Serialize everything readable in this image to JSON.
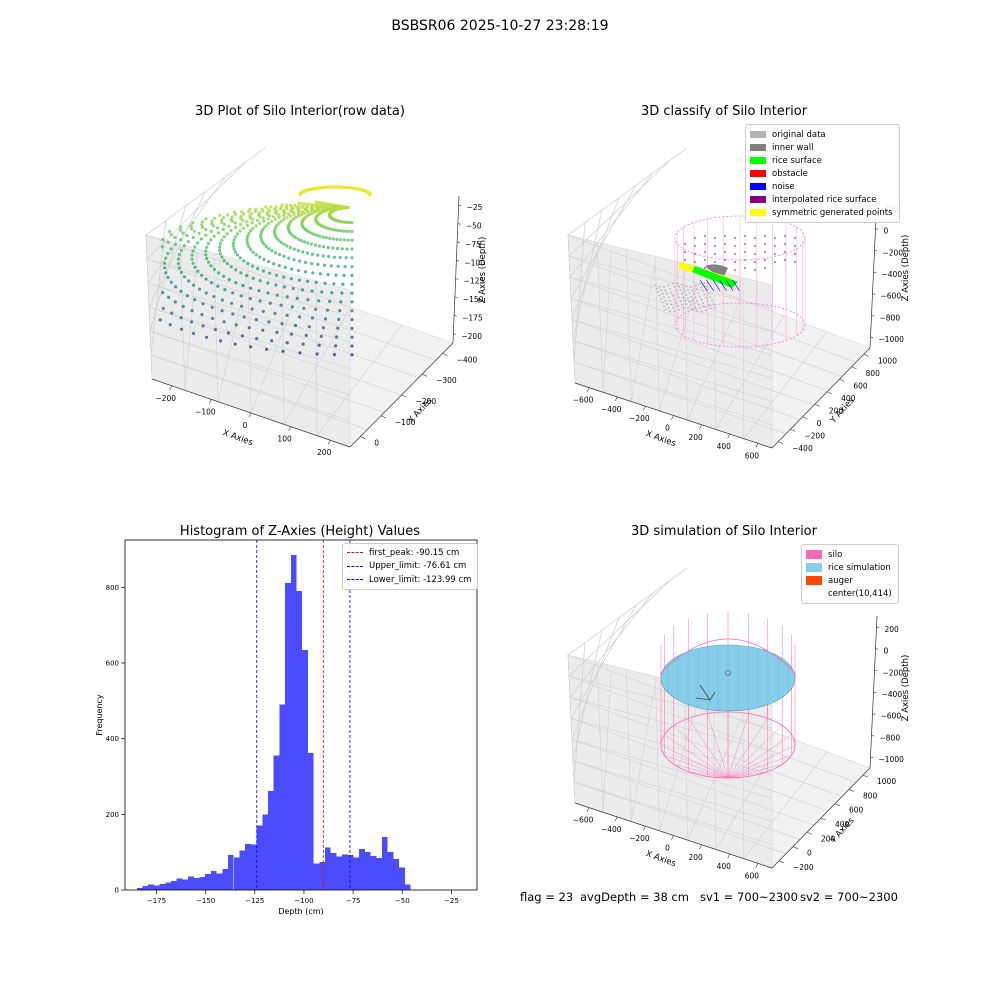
{
  "figure": {
    "suptitle": "BSBSR06 2025-10-27 23:28:19"
  },
  "colors": {
    "histogram_bar": "#4c4cff",
    "first_peak_line": "#ff0000",
    "limit_line": "#0000ff",
    "silo": "#ff69b4",
    "rice_simulation": "#87ceeb",
    "auger": "#ff4500"
  },
  "chart_data": [
    {
      "type": "scatter",
      "projection": "3d",
      "title": "3D Plot of Silo Interior(row data)",
      "xlabel": "X Axies",
      "ylabel": "Y Axies",
      "zlabel": "Z Axies (Depth)",
      "x_ticks": [
        "−200",
        "−100",
        "0",
        "100",
        "200"
      ],
      "y_ticks": [
        "−400",
        "−300",
        "−200",
        "−100",
        "0"
      ],
      "z_ticks": [
        "−25",
        "−50",
        "−75",
        "−100",
        "−125",
        "−150",
        "−175",
        "−200"
      ],
      "colormap": "viridis",
      "grid": true
    },
    {
      "type": "scatter",
      "projection": "3d",
      "title": "3D classify of Silo Interior",
      "xlabel": "X Axies",
      "ylabel": "Y Axies",
      "zlabel": "Z Axies (Depth)",
      "x_ticks": [
        "−600",
        "−400",
        "−200",
        "0",
        "200",
        "400",
        "600"
      ],
      "y_ticks": [
        "−400",
        "−200",
        "0",
        "200",
        "400",
        "600",
        "800",
        "1000"
      ],
      "z_ticks": [
        "200",
        "0",
        "−200",
        "−400",
        "−600",
        "−800",
        "−1000"
      ],
      "legend_position": "top-right",
      "legend": [
        {
          "label": "original data",
          "color": "#b3b3b3"
        },
        {
          "label": "inner wall",
          "color": "#808080"
        },
        {
          "label": "rice surface",
          "color": "#00ff00"
        },
        {
          "label": "obstacle",
          "color": "#ff0000"
        },
        {
          "label": "noise",
          "color": "#0000ff"
        },
        {
          "label": "interpolated rice surface",
          "color": "#800080"
        },
        {
          "label": "symmetric generated points",
          "color": "#ffff00"
        }
      ],
      "grid": true
    },
    {
      "type": "bar",
      "title": "Histogram of Z-Axies (Height) Values",
      "xlabel": "Depth (cm)",
      "ylabel": "Frequency",
      "bin_start": -185,
      "bin_width": 2.9,
      "values": [
        5,
        10,
        14,
        12,
        16,
        20,
        24,
        30,
        28,
        36,
        32,
        34,
        42,
        50,
        44,
        56,
        92,
        86,
        104,
        122,
        120,
        170,
        200,
        262,
        356,
        490,
        812,
        886,
        790,
        634,
        362,
        70,
        74,
        112,
        98,
        88,
        94,
        92,
        86,
        108,
        100,
        90,
        84,
        140,
        100,
        82,
        60,
        14
      ],
      "xlim": [
        -191,
        -12
      ],
      "ylim": [
        0,
        925
      ],
      "x_ticks": [
        -175,
        -150,
        -125,
        -100,
        -75,
        -50,
        -25
      ],
      "x_tick_labels": [
        "−175",
        "−150",
        "−125",
        "−100",
        "−75",
        "−50",
        "−25"
      ],
      "y_ticks": [
        0,
        200,
        400,
        600,
        800
      ],
      "y_tick_labels": [
        "0",
        "200",
        "400",
        "600",
        "800"
      ],
      "vlines": [
        {
          "label": "first_peak: -90.15 cm",
          "x": -90.15,
          "color": "#ff0000"
        },
        {
          "label": "Upper_limit: -76.61 cm",
          "x": -76.61,
          "color": "#0000ff"
        },
        {
          "label": "Lower_limit: -123.99 cm",
          "x": -123.99,
          "color": "#0000ff"
        }
      ],
      "legend_position": "top-right",
      "grid": false
    },
    {
      "type": "surface",
      "projection": "3d",
      "title": "3D simulation of Silo Interior",
      "xlabel": "X Axies",
      "ylabel": "Y Axies",
      "zlabel": "Z Axies (Depth)",
      "x_ticks": [
        "−600",
        "−400",
        "−200",
        "0",
        "200",
        "400",
        "600"
      ],
      "y_ticks": [
        "−200",
        "0",
        "200",
        "400",
        "600",
        "800",
        "1000"
      ],
      "z_ticks": [
        "200",
        "0",
        "−200",
        "−400",
        "−600",
        "−800",
        "−1000"
      ],
      "legend_position": "top-right",
      "legend": [
        {
          "label": "silo",
          "color": "#ff69b4"
        },
        {
          "label": "rice simulation",
          "color": "#87ceeb"
        },
        {
          "label": "auger",
          "color": "#ff4500"
        },
        {
          "label": "center(10,414)",
          "color": ""
        }
      ],
      "grid": true
    }
  ],
  "footer": {
    "flag": "flag = 23",
    "avg_depth": "avgDepth = 38 cm",
    "sv1": "sv1 = 700~2300",
    "sv2": "sv2 = 700~2300"
  }
}
